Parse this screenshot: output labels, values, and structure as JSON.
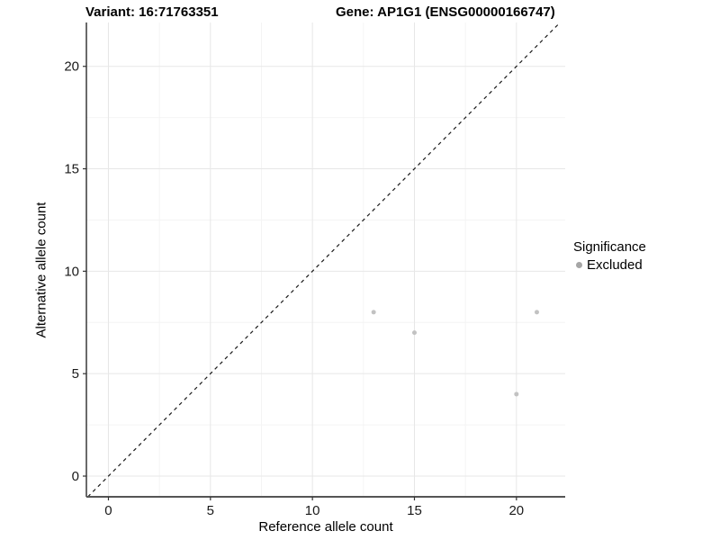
{
  "header": {
    "left_title": "Variant: 16:71763351",
    "right_title": "Gene: AP1G1 (ENSG00000166747)"
  },
  "chart_data": {
    "type": "scatter",
    "title": "Variant: 16:71763351   Gene: AP1G1 (ENSG00000166747)",
    "xlabel": "Reference allele count",
    "ylabel": "Alternative allele count",
    "xlim": [
      -1.08,
      22.39
    ],
    "ylim": [
      -1.01,
      22.14
    ],
    "x_ticks": [
      0,
      5,
      10,
      15,
      20
    ],
    "y_ticks": [
      0,
      5,
      10,
      15,
      20
    ],
    "x_minor_ticks": [
      2.5,
      7.5,
      12.5,
      17.5
    ],
    "y_minor_ticks": [
      2.5,
      7.5,
      12.5,
      17.5
    ],
    "grid": true,
    "series": [
      {
        "name": "Excluded",
        "color": "#c2c2c2",
        "point_radius": 2.5,
        "points": [
          {
            "x": 13,
            "y": 8
          },
          {
            "x": 15,
            "y": 7
          },
          {
            "x": 20,
            "y": 4
          },
          {
            "x": 21,
            "y": 8
          }
        ]
      }
    ],
    "reference_line": {
      "kind": "identity",
      "style": "dashed",
      "color": "#1a1a1a"
    },
    "legend": {
      "position": "right",
      "title": "Significance",
      "entries": [
        {
          "label": "Excluded",
          "color": "#a6a6a6"
        }
      ]
    },
    "colors": {
      "major_grid": "#e7e7e7",
      "minor_grid": "#f4f4f4",
      "y_axis_line": "#1a1a1a",
      "x_axis_line": "#555555",
      "tick_mark": "#333333",
      "tick_label": "#1a1a1a",
      "panel_background": "#ffffff"
    }
  }
}
